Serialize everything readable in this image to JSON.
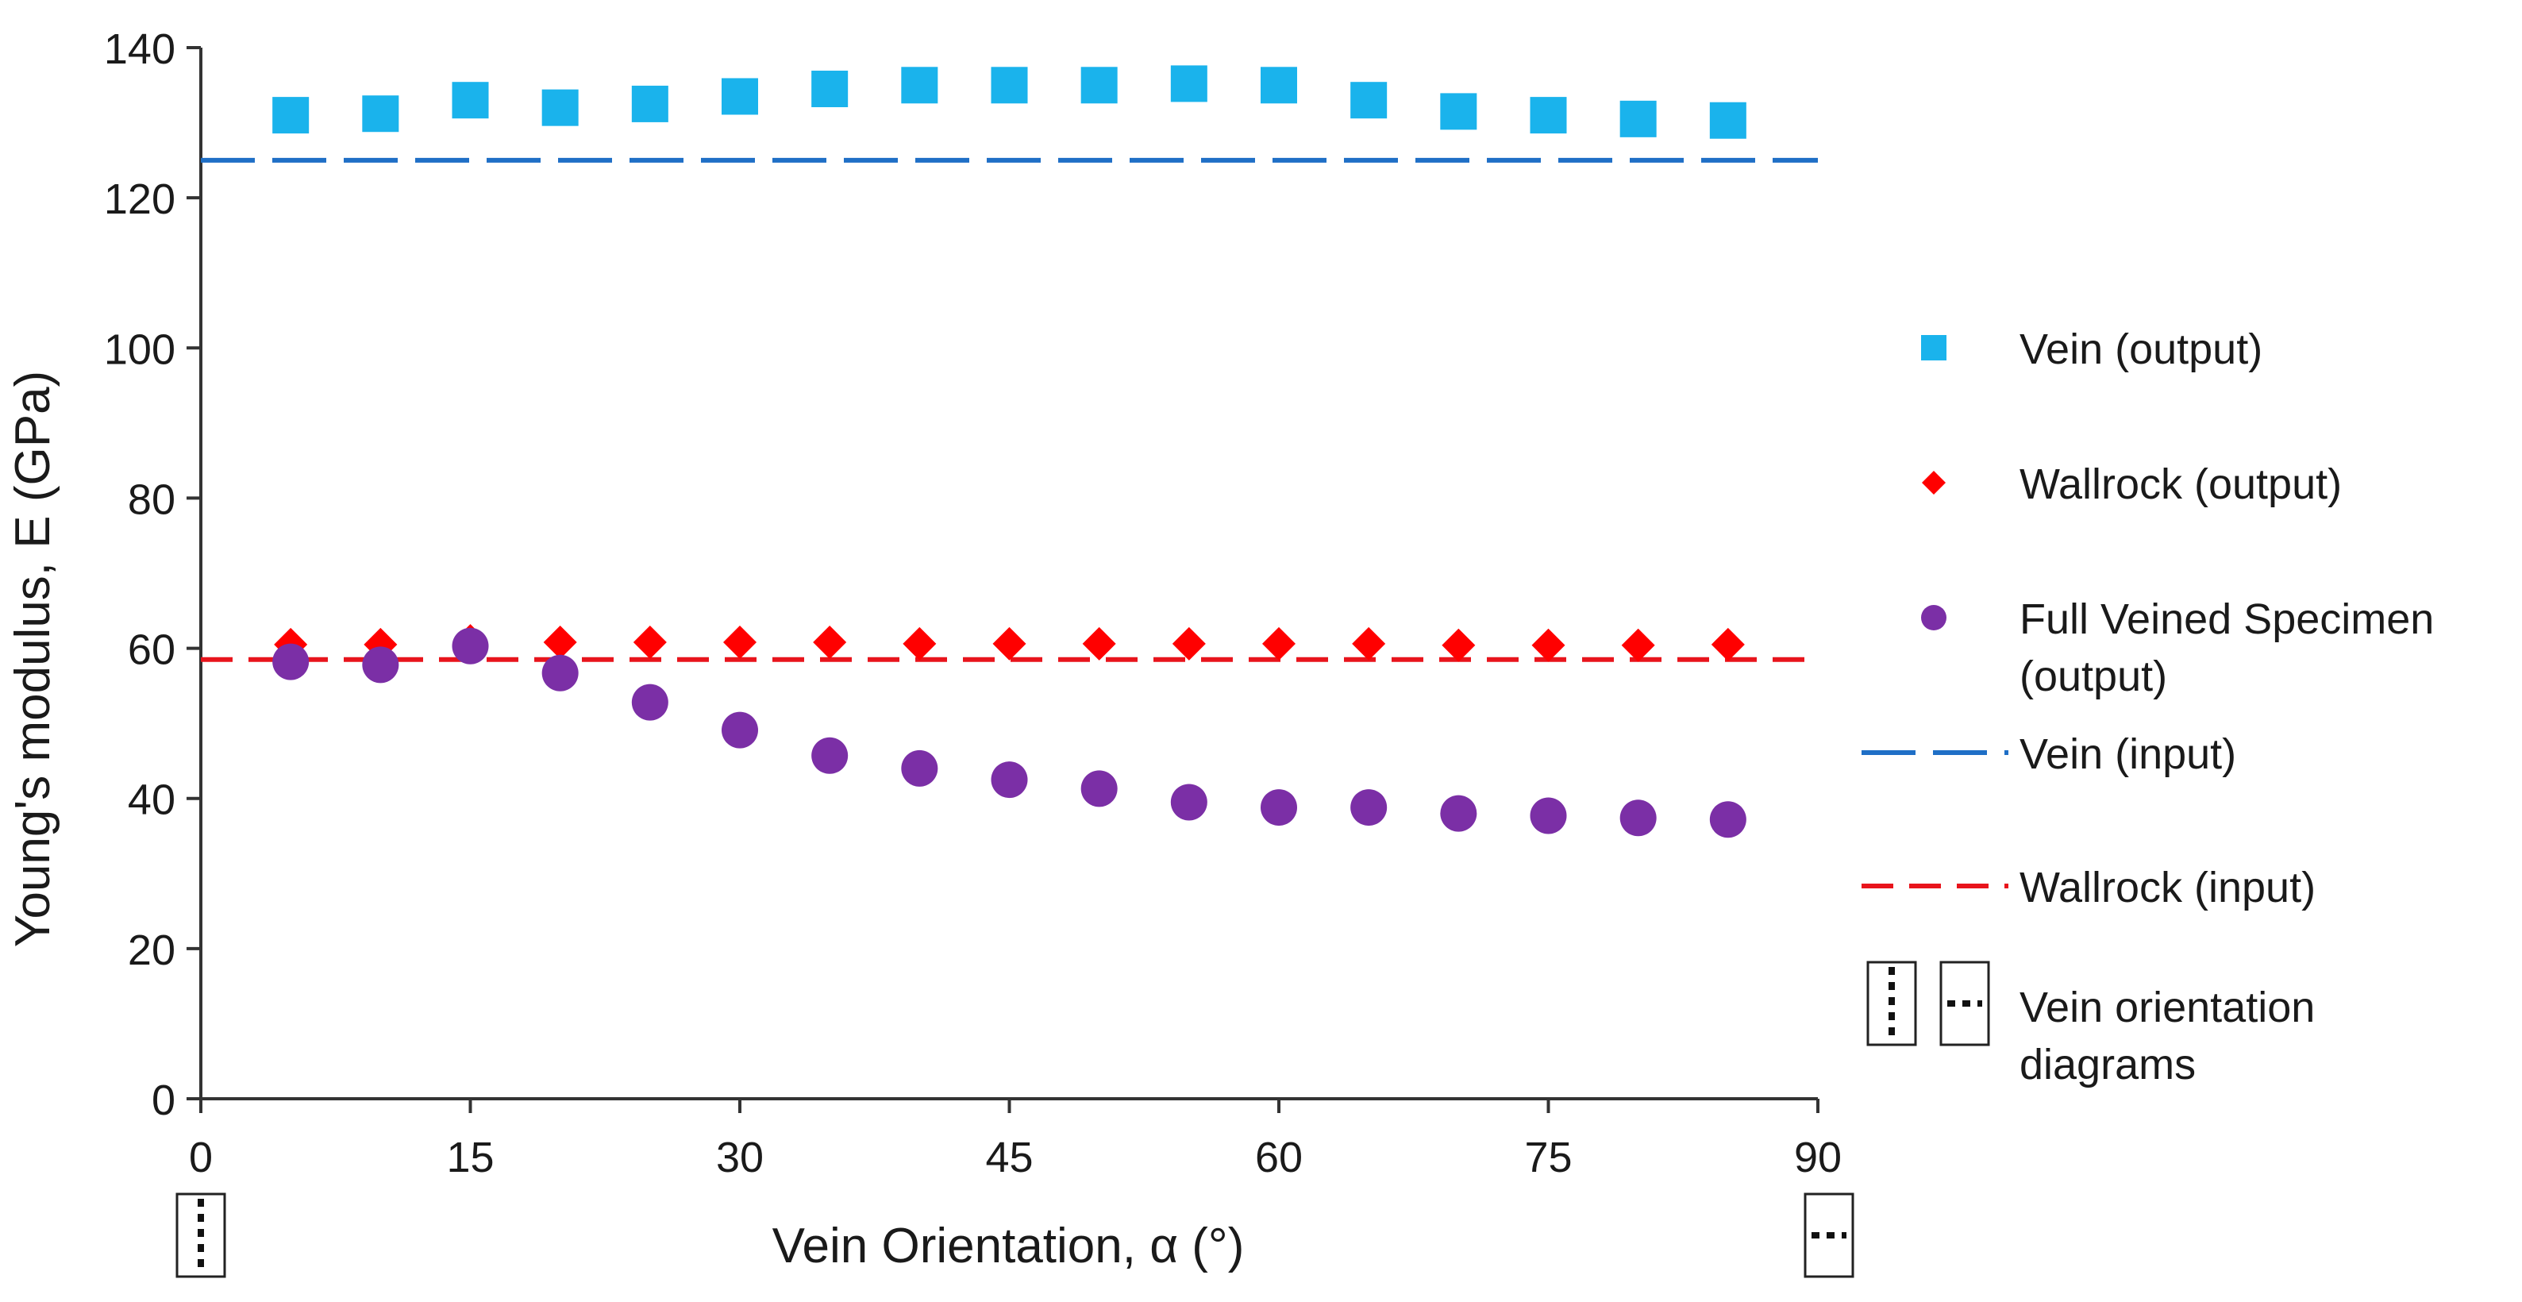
{
  "chart_data": {
    "type": "scatter",
    "xlabel": "Vein Orientation, α (°)",
    "ylabel": "Young's modulus, E (GPa)",
    "xlim": [
      0,
      90
    ],
    "ylim": [
      0,
      140
    ],
    "xticks": [
      0,
      15,
      30,
      45,
      60,
      75,
      90
    ],
    "yticks": [
      0,
      20,
      40,
      60,
      80,
      100,
      120,
      140
    ],
    "grid": false,
    "legend_position": "right",
    "x": [
      5,
      10,
      15,
      20,
      25,
      30,
      35,
      40,
      45,
      50,
      55,
      60,
      65,
      70,
      75,
      80,
      85
    ],
    "series": [
      {
        "name": "Vein (output)",
        "marker": "square",
        "color": "#1ab3ec",
        "values": [
          131,
          131.2,
          133,
          132,
          132.5,
          133.5,
          134.5,
          135,
          135,
          135,
          135.2,
          135,
          133,
          131.5,
          131,
          130.5,
          130.3
        ]
      },
      {
        "name": "Wallrock (output)",
        "marker": "diamond",
        "color": "#ff0000",
        "values": [
          60.5,
          60.5,
          61,
          60.8,
          60.8,
          60.8,
          60.8,
          60.6,
          60.6,
          60.6,
          60.6,
          60.6,
          60.6,
          60.4,
          60.4,
          60.4,
          60.5
        ]
      },
      {
        "name": "Full Veined Specimen (output)",
        "legend_lines": [
          "Full Veined Specimen",
          "(output)"
        ],
        "marker": "circle",
        "color": "#7b2fa6",
        "values": [
          58.2,
          57.8,
          60.3,
          56.7,
          52.8,
          49.1,
          45.7,
          44,
          42.5,
          41.3,
          39.5,
          38.8,
          38.8,
          38,
          37.7,
          37.4,
          37.2
        ]
      },
      {
        "name": "Vein (input)",
        "style": "long-dash-line",
        "color": "#1f6fc6",
        "value": 125
      },
      {
        "name": "Wallrock (input)",
        "style": "dashed-line",
        "color": "#e8141c",
        "value": 58.5
      }
    ],
    "diagram_legend": {
      "label_lines": [
        "Vein orientation",
        "diagrams"
      ],
      "at_x": [
        0,
        90
      ]
    }
  }
}
